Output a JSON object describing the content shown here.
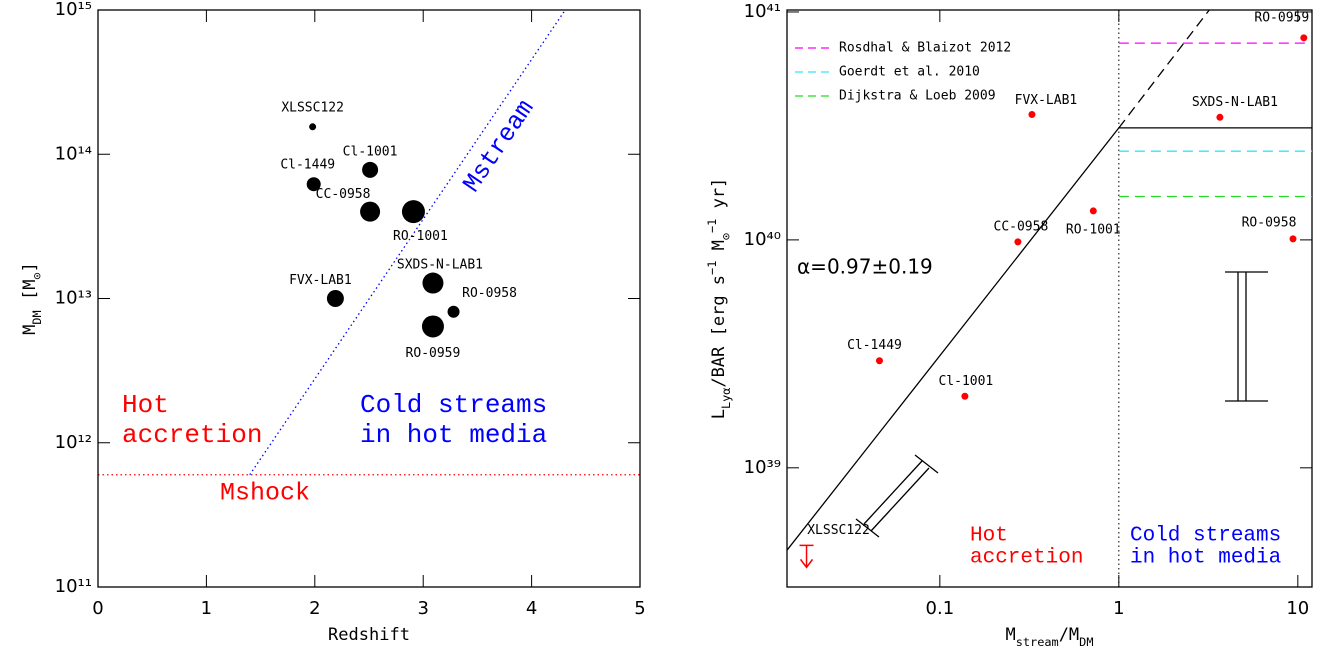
{
  "chart_data": [
    {
      "type": "scatter",
      "x_label_parts": [
        {
          "text": "Redshift"
        }
      ],
      "y_label_parts": [
        {
          "text": "M"
        },
        {
          "text": "DM",
          "shift": "sub"
        },
        {
          "text": " [M"
        },
        {
          "text": "⊙",
          "shift": "sub"
        },
        {
          "text": "]"
        }
      ],
      "xlim": [
        0,
        5
      ],
      "xticks": [
        0,
        1,
        2,
        3,
        4,
        5
      ],
      "ylim": [
        100000000000.0,
        1000000000000000.0
      ],
      "log_y": true,
      "yticks": [
        {
          "value": 100000000000.0,
          "label": "10¹¹"
        },
        {
          "value": 1000000000000.0,
          "label": "10¹²"
        },
        {
          "value": 10000000000000.0,
          "label": "10¹³"
        },
        {
          "value": 100000000000000.0,
          "label": "10¹⁴"
        },
        {
          "value": 1000000000000000.0,
          "label": "10¹⁵"
        }
      ],
      "color": "#000000",
      "labels": [
        "XLSSC122",
        "Cl-1001",
        "Cl-1449",
        "CC-0958",
        "RO-1001",
        "SXDS-N-LAB1",
        "FVX-LAB1",
        "RO-0958",
        "RO-0959"
      ],
      "x": [
        1.98,
        2.51,
        1.99,
        2.51,
        2.91,
        3.09,
        2.19,
        3.28,
        3.09
      ],
      "values": [
        155000000000000.0,
        78000000000000.0,
        62000000000000.0,
        40000000000000.0,
        40000000000000.0,
        12800000000000.0,
        10000000000000.0,
        8100000000000.0,
        6400000000000.0
      ],
      "sizes": [
        3.5,
        8,
        7,
        10,
        11.5,
        10.5,
        8.5,
        6,
        11
      ],
      "lines": [
        {
          "name": "Mstream",
          "color": "#0000ff",
          "style": "dotted",
          "x": [
            1.4,
            4.31
          ],
          "values": [
            600000000000.0,
            1000000000000000.0
          ]
        },
        {
          "name": "Mshock",
          "color": "#ff0000",
          "style": "dotted",
          "x": [
            0,
            5
          ],
          "values": [
            600000000000.0,
            600000000000.0
          ]
        }
      ],
      "annotations": [
        {
          "text": [
            "Hot",
            "accretion"
          ],
          "color": "#ff0000"
        },
        {
          "text": [
            "Cold streams",
            "in hot media"
          ],
          "color": "#0000ff"
        }
      ]
    },
    {
      "type": "scatter",
      "x_label_parts": [
        {
          "text": "M"
        },
        {
          "text": "stream",
          "shift": "sub"
        },
        {
          "text": "/M"
        },
        {
          "text": "DM",
          "shift": "sub"
        }
      ],
      "y_label_parts": [
        {
          "text": "L"
        },
        {
          "text": "Lyα",
          "shift": "sub"
        },
        {
          "text": "/BAR [erg s"
        },
        {
          "text": "−1",
          "shift": "super"
        },
        {
          "text": " M"
        },
        {
          "text": "⊙",
          "shift": "sub"
        },
        {
          "text": "−1",
          "shift": "super"
        },
        {
          "text": " yr]"
        }
      ],
      "xlim": [
        0.014,
        12
      ],
      "log_x": true,
      "xticks": [
        0.1,
        1,
        10
      ],
      "ylim": [
        3e+38,
        1.02e+41
      ],
      "log_y": true,
      "yticks": [
        {
          "value": 1e+39,
          "label": "10³⁹"
        },
        {
          "value": 1e+40,
          "label": "10⁴⁰"
        },
        {
          "value": 1e+41,
          "label": "10⁴¹"
        }
      ],
      "color": "#ff0000",
      "labels": [
        "RO-0959",
        "FVX-LAB1",
        "SXDS-N-LAB1",
        "RO-1001",
        "CC-0958",
        "RO-0958",
        "Cl-1449",
        "Cl-1001"
      ],
      "x": [
        10.8,
        0.327,
        3.67,
        0.72,
        0.273,
        9.4,
        0.046,
        0.138
      ],
      "values": [
        7.7e+40,
        3.55e+40,
        3.45e+40,
        1.34e+40,
        9.8e+39,
        1.01e+40,
        2.95e+39,
        2.06e+39
      ],
      "upper_limits": {
        "labels": [
          "XLSSC122"
        ],
        "x": [
          0.018
        ],
        "values": [
          4.3e+38
        ],
        "color": "#ff0000"
      },
      "divider_x": 1,
      "lines": [
        {
          "color": "#000000",
          "style": "solid",
          "x": [
            0.014,
            1
          ],
          "values": [
            4.35e+38,
            3.1e+40
          ]
        },
        {
          "color": "#000000",
          "style": "dashed",
          "x": [
            1,
            3.2
          ],
          "values": [
            3.1e+40,
            1.02e+41
          ]
        },
        {
          "color": "#000000",
          "style": "solid",
          "x": [
            1,
            12
          ],
          "values": [
            3.1e+40,
            3.1e+40
          ]
        }
      ],
      "references": [
        {
          "name": "Rosdhal & Blaizot 2012",
          "color": "#ff00ff",
          "value": 7.3e+40
        },
        {
          "name": "Goerdt et al. 2010",
          "color": "#33e5ff",
          "value": 2.45e+40
        },
        {
          "name": "Dijkstra & Loeb 2009",
          "color": "#22dd22",
          "value": 1.55e+40
        }
      ],
      "fit_label": "α=0.97±0.19",
      "annotations": [
        {
          "text": [
            "Hot",
            "accretion"
          ],
          "color": "#ff0000"
        },
        {
          "text": [
            "Cold streams",
            "in hot media"
          ],
          "color": "#0000ff"
        }
      ]
    }
  ]
}
